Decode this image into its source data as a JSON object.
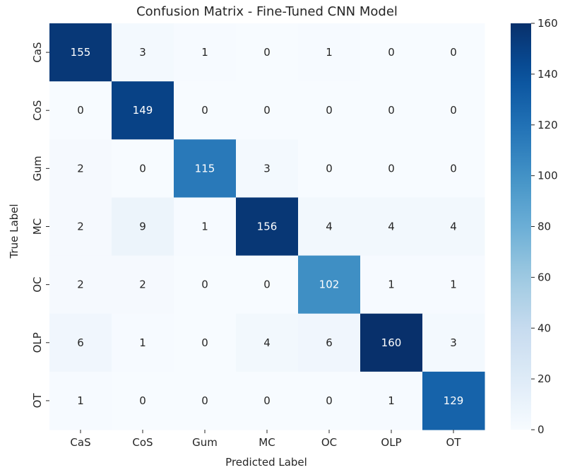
{
  "chart_data": {
    "type": "heatmap",
    "title": "Confusion Matrix - Fine-Tuned CNN Model",
    "xlabel": "Predicted Label",
    "ylabel": "True Label",
    "x_categories": [
      "CaS",
      "CoS",
      "Gum",
      "MC",
      "OC",
      "OLP",
      "OT"
    ],
    "y_categories": [
      "CaS",
      "CoS",
      "Gum",
      "MC",
      "OC",
      "OLP",
      "OT"
    ],
    "values": [
      [
        155,
        3,
        1,
        0,
        1,
        0,
        0
      ],
      [
        0,
        149,
        0,
        0,
        0,
        0,
        0
      ],
      [
        2,
        0,
        115,
        3,
        0,
        0,
        0
      ],
      [
        2,
        9,
        1,
        156,
        4,
        4,
        4
      ],
      [
        2,
        2,
        0,
        0,
        102,
        1,
        1
      ],
      [
        6,
        1,
        0,
        4,
        6,
        160,
        3
      ],
      [
        1,
        0,
        0,
        0,
        0,
        1,
        129
      ]
    ],
    "colormap": "Blues",
    "vmin": 0,
    "vmax": 160,
    "colorbar_ticks": [
      0,
      20,
      40,
      60,
      80,
      100,
      120,
      140,
      160
    ],
    "grid": false,
    "colorbar_position": "right"
  }
}
